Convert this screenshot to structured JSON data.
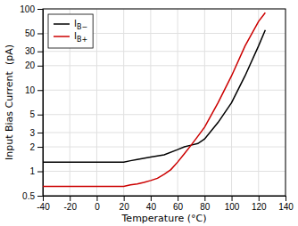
{
  "chart_data": {
    "type": "line",
    "xlabel": "Temperature (°C)",
    "ylabel": "Input Bias Current  (pA)",
    "log": "y",
    "grid": true,
    "legend": "upper left",
    "xlim": [
      -40,
      140
    ],
    "xticks": [
      -40,
      -20,
      0,
      20,
      40,
      60,
      80,
      100,
      120,
      140
    ],
    "ylim": [
      0.5,
      100
    ],
    "yticks": [
      0.5,
      1,
      2,
      3,
      5,
      10,
      20,
      30,
      50,
      100
    ],
    "series": [
      {
        "name": "IB−",
        "color": "#000000",
        "x": [
          -40,
          -20,
          -10,
          0,
          10,
          20,
          25,
          30,
          40,
          50,
          60,
          65,
          70,
          75,
          80,
          90,
          100,
          110,
          120,
          125
        ],
        "values": [
          1.3,
          1.3,
          1.3,
          1.3,
          1.3,
          1.3,
          1.35,
          1.4,
          1.5,
          1.6,
          1.85,
          2.0,
          2.1,
          2.2,
          2.5,
          4.0,
          7.0,
          15,
          35,
          55
        ]
      },
      {
        "name": "IB+",
        "color": "#cc0000",
        "x": [
          -40,
          -20,
          -10,
          0,
          10,
          20,
          25,
          30,
          35,
          40,
          45,
          50,
          55,
          60,
          65,
          70,
          75,
          80,
          90,
          100,
          110,
          120,
          125
        ],
        "values": [
          0.65,
          0.65,
          0.65,
          0.65,
          0.65,
          0.65,
          0.68,
          0.7,
          0.73,
          0.77,
          0.82,
          0.92,
          1.05,
          1.3,
          1.65,
          2.1,
          2.7,
          3.5,
          7.0,
          15,
          35,
          70,
          90
        ]
      }
    ]
  }
}
